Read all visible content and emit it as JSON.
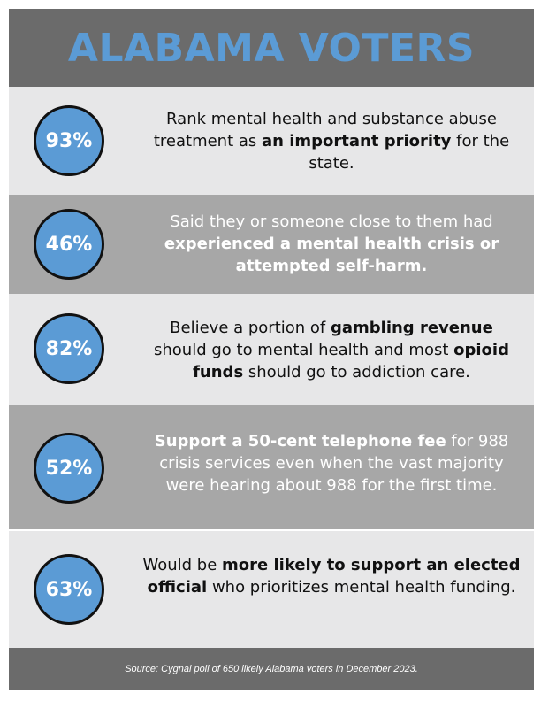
{
  "header": {
    "title": "ALABAMA VOTERS"
  },
  "stats": [
    {
      "percent": "93%",
      "parts": [
        {
          "text": "Rank mental health and substance abuse treatment as ",
          "bold": false
        },
        {
          "text": "an important priority",
          "bold": true
        },
        {
          "text": " for the state.",
          "bold": false
        }
      ]
    },
    {
      "percent": "46%",
      "parts": [
        {
          "text": "Said they or someone close to them had ",
          "bold": false
        },
        {
          "text": "experienced a mental health crisis or attempted self-harm.",
          "bold": true
        }
      ]
    },
    {
      "percent": "82%",
      "parts": [
        {
          "text": "Believe a portion of ",
          "bold": false
        },
        {
          "text": "gambling revenue",
          "bold": true
        },
        {
          "text": " should go to mental health and most ",
          "bold": false
        },
        {
          "text": "opioid funds",
          "bold": true
        },
        {
          "text": " should go to addiction care.",
          "bold": false
        }
      ]
    },
    {
      "percent": "52%",
      "parts": [
        {
          "text": "Support a 50-cent  telephone fee",
          "bold": true
        },
        {
          "text": " for 988 crisis services even when the vast majority were hearing about 988 for the first time.",
          "bold": false
        }
      ]
    },
    {
      "percent": "63%",
      "parts": [
        {
          "text": "Would be ",
          "bold": false
        },
        {
          "text": "more likely to support an elected official",
          "bold": true
        },
        {
          "text": " who prioritizes mental health funding.",
          "bold": false
        }
      ]
    }
  ],
  "footer": {
    "source": "Source: Cygnal poll of 650 likely Alabama voters in December 2023."
  },
  "colors": {
    "accent": "#5b9bd5",
    "header_bg": "#6b6b6b",
    "light_row": "#e7e7e8",
    "dark_row": "#a7a7a7"
  }
}
